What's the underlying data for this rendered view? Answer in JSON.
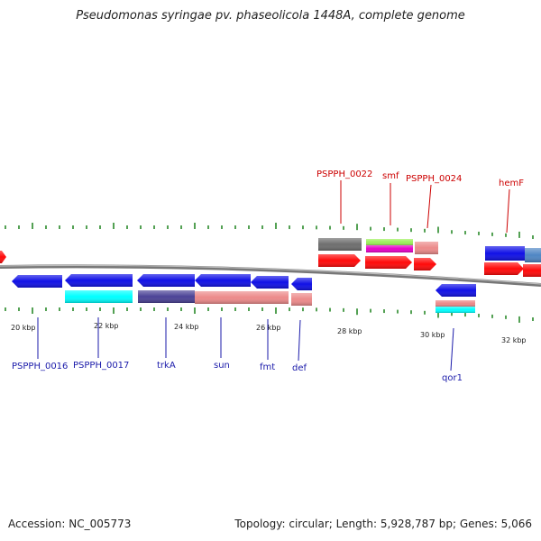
{
  "title": "Pseudomonas syringae pv. phaseolicola 1448A, complete genome",
  "footer": {
    "accession": "Accession: NC_005773",
    "topology": "Topology: circular; Length: 5,928,787 bp; Genes: 5,066"
  },
  "scale_labels": [
    "20 kbp",
    "22 kbp",
    "24 kbp",
    "26 kbp",
    "28 kbp",
    "30 kbp",
    "32 kbp"
  ],
  "gene_labels_top": [
    "PSPPH_0022",
    "smf",
    "PSPPH_0024",
    "hemF"
  ],
  "gene_labels_bottom": [
    "PSPPH_0016",
    "PSPPH_0017",
    "trkA",
    "sun",
    "fmt",
    "def",
    "qor1"
  ],
  "colors": {
    "cds": "#1010e6",
    "cds_red": "#ff0a0a",
    "cyan": "#00ffff",
    "slate": "#4b4296",
    "salmon": "#ec8a8a",
    "gray": "#6e6e6e",
    "lime": "#9cf05a",
    "magenta": "#e600c8",
    "steel": "#4f86c4",
    "backbone": "#888888",
    "tick": "#2a8a2a",
    "top_label": "#cc0000",
    "bottom_label": "#1a1aaa"
  }
}
